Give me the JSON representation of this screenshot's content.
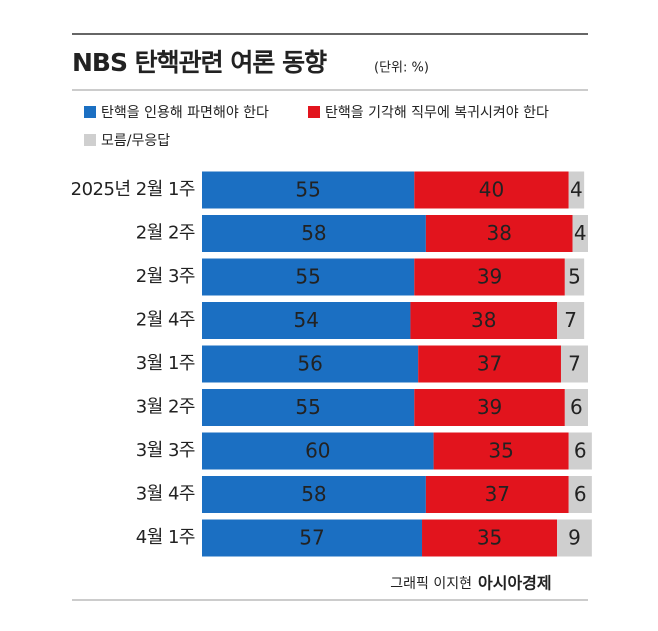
{
  "chart_data": {
    "type": "stacked_bar",
    "orientation": "horizontal",
    "title": "NBS 탄핵관련 여론 동향",
    "subtitle": "(단위: %)",
    "categories": [
      "2025년 2월 1주",
      "2월 2주",
      "2월 3주",
      "2월 4주",
      "3월 1주",
      "3월 2주",
      "3월 3주",
      "3월 4주",
      "4월 1주"
    ],
    "series": [
      {
        "name": "탄핵을 인용해 파면해야 한다",
        "color": "#1b6fc2",
        "values": [
          55,
          58,
          55,
          54,
          56,
          55,
          60,
          58,
          57
        ]
      },
      {
        "name": "탄핵을 기각해 직무에 복귀시켜야 한다",
        "color": "#e2141d",
        "values": [
          40,
          38,
          39,
          38,
          37,
          39,
          35,
          37,
          35
        ]
      },
      {
        "name": "모름/무응답",
        "color": "#cfcfcf",
        "values": [
          4,
          4,
          5,
          7,
          7,
          6,
          6,
          6,
          9
        ]
      }
    ],
    "credit": "그래픽 이지현",
    "source": "아시아경제"
  }
}
